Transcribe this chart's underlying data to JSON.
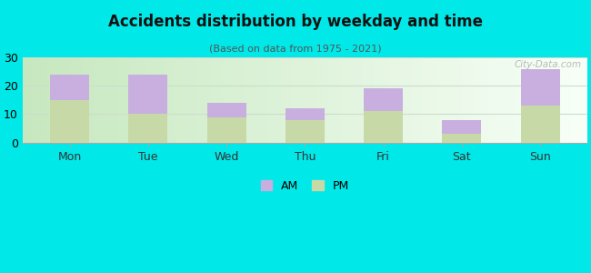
{
  "categories": [
    "Mon",
    "Tue",
    "Wed",
    "Thu",
    "Fri",
    "Sat",
    "Sun"
  ],
  "pm_values": [
    15,
    10,
    9,
    8,
    11,
    3,
    13
  ],
  "am_values": [
    9,
    14,
    5,
    4,
    8,
    5,
    13
  ],
  "am_color": "#c9aee0",
  "pm_color": "#c8d9a8",
  "title": "Accidents distribution by weekday and time",
  "subtitle": "(Based on data from 1975 - 2021)",
  "ylim": [
    0,
    30
  ],
  "yticks": [
    0,
    10,
    20,
    30
  ],
  "background_color": "#00e8e8",
  "plot_bg_left": "#d4edda",
  "plot_bg_right": "#f8fffa",
  "watermark": "City-Data.com",
  "bar_width": 0.5
}
